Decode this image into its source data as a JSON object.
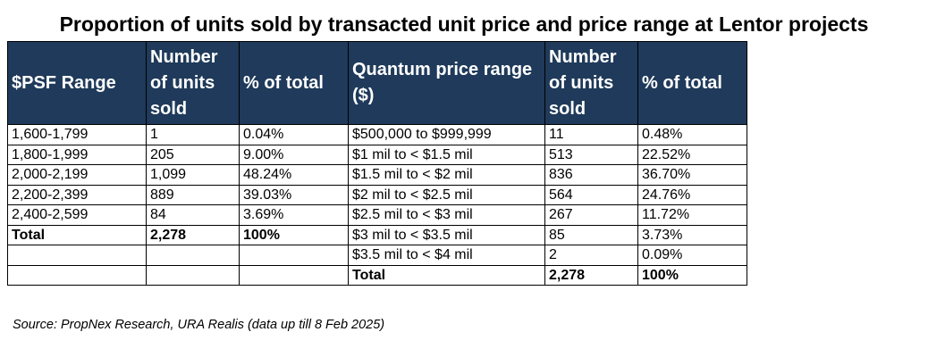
{
  "title": "Proportion of units sold by transacted unit price and price range at Lentor projects",
  "headers": {
    "psf_range": "$PSF Range",
    "units_left": "Number of units sold",
    "pct_left": "% of total",
    "quantum_range": "Quantum price range ($)",
    "units_right": "Number of units sold",
    "pct_right": "% of total"
  },
  "rows": [
    {
      "psf": "1,600-1,799",
      "units_l": "1",
      "pct_l": "0.04%",
      "quantum": "$500,000 to $999,999",
      "units_r": "11",
      "pct_r": "0.48%"
    },
    {
      "psf": "1,800-1,999",
      "units_l": "205",
      "pct_l": "9.00%",
      "quantum": "$1 mil to < $1.5 mil",
      "units_r": "513",
      "pct_r": "22.52%"
    },
    {
      "psf": "2,000-2,199",
      "units_l": "1,099",
      "pct_l": "48.24%",
      "quantum": "$1.5 mil to < $2 mil",
      "units_r": "836",
      "pct_r": "36.70%"
    },
    {
      "psf": "2,200-2,399",
      "units_l": "889",
      "pct_l": "39.03%",
      "quantum": "$2 mil to < $2.5 mil",
      "units_r": "564",
      "pct_r": "24.76%"
    },
    {
      "psf": "2,400-2,599",
      "units_l": "84",
      "pct_l": "3.69%",
      "quantum": "$2.5 mil to < $3 mil",
      "units_r": "267",
      "pct_r": "11.72%"
    },
    {
      "psf": "Total",
      "units_l": "2,278",
      "pct_l": "100%",
      "quantum": "$3 mil to < $3.5 mil",
      "units_r": "85",
      "pct_r": "3.73%"
    },
    {
      "psf": "",
      "units_l": "",
      "pct_l": "",
      "quantum": "$3.5 mil to < $4 mil",
      "units_r": "2",
      "pct_r": "0.09%"
    },
    {
      "psf": "",
      "units_l": "",
      "pct_l": "",
      "quantum": "Total",
      "units_r": "2,278",
      "pct_r": "100%"
    }
  ],
  "source": "Source: PropNex Research, URA Realis (data up till 8 Feb 2025)"
}
